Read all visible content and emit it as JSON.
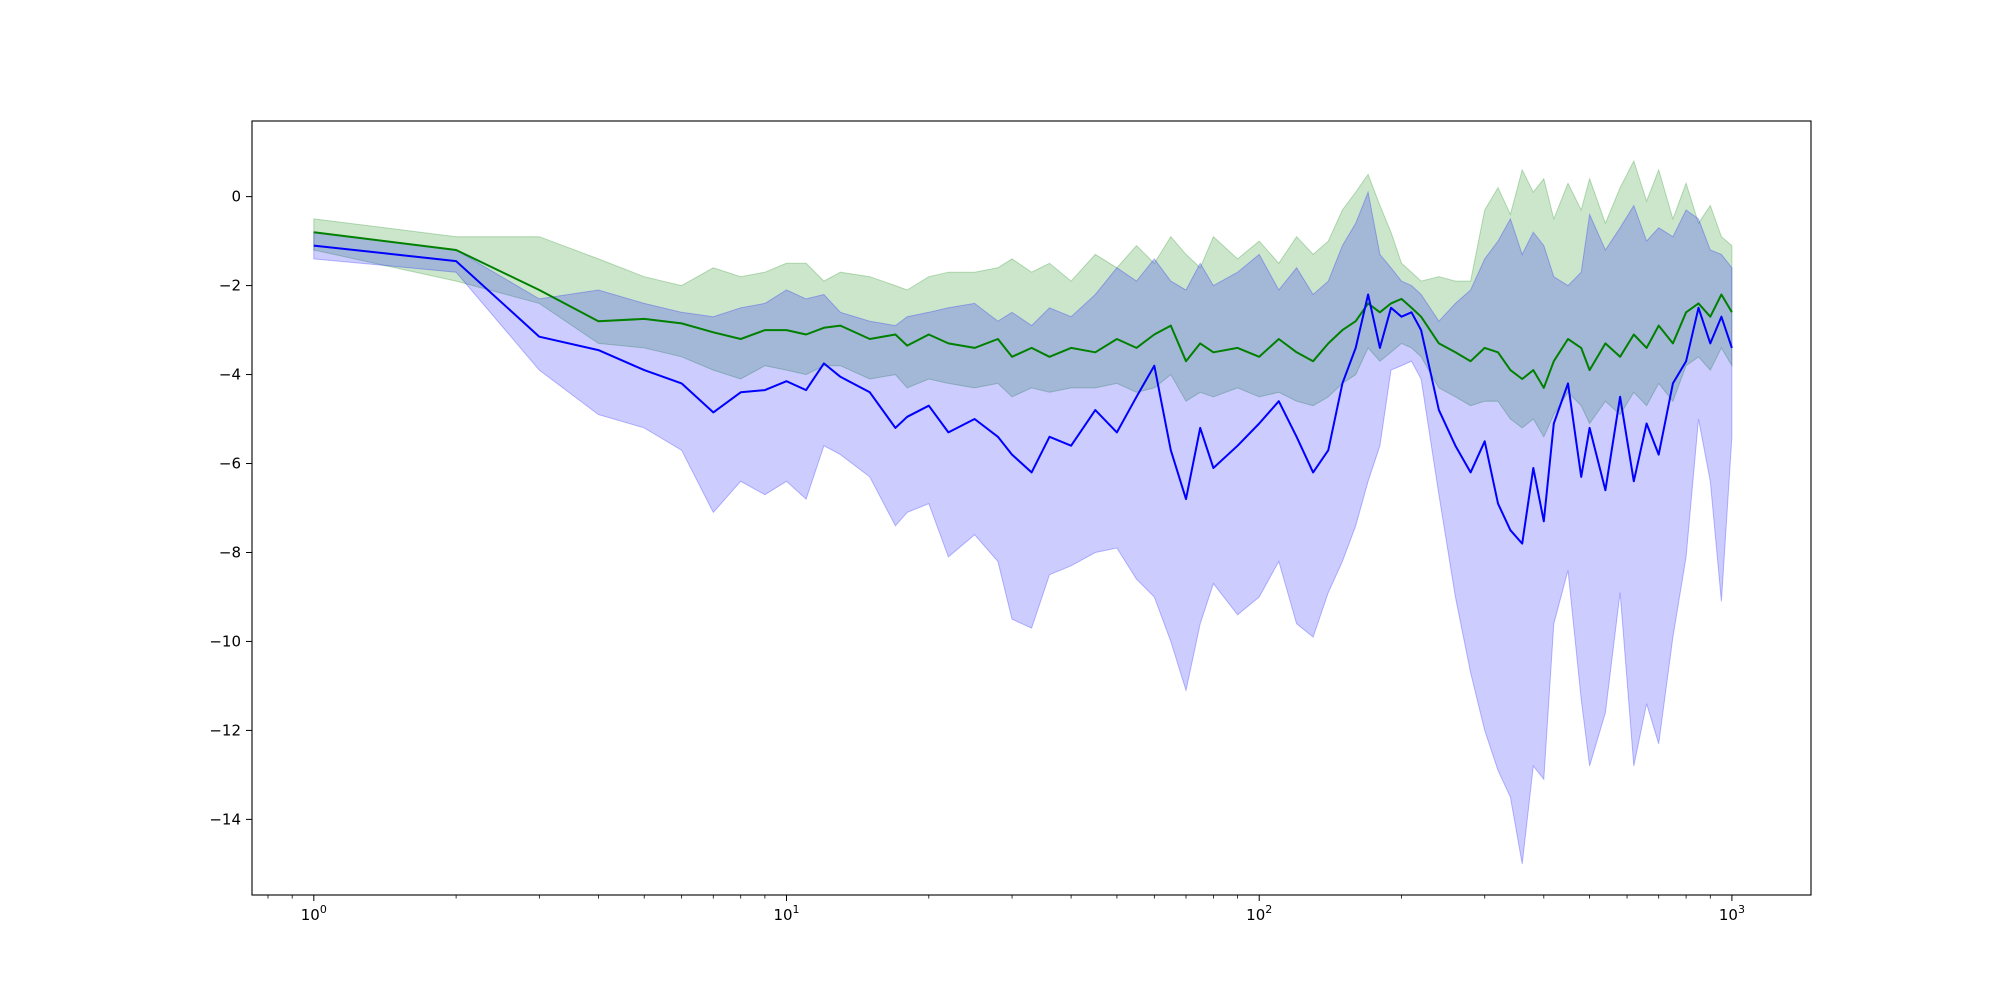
{
  "chart_data": {
    "type": "line",
    "title": "",
    "xlabel": "",
    "ylabel": "",
    "x_scale": "log",
    "xlim": [
      0.74,
      1470
    ],
    "ylim": [
      -15.7,
      1.7
    ],
    "x_ticks": [
      {
        "value": 1,
        "base": "10",
        "exp": "0"
      },
      {
        "value": 10,
        "base": "10",
        "exp": "1"
      },
      {
        "value": 100,
        "base": "10",
        "exp": "2"
      },
      {
        "value": 1000,
        "base": "10",
        "exp": "3"
      }
    ],
    "y_ticks": [
      {
        "value": 0,
        "label": "0"
      },
      {
        "value": -2,
        "label": "−2"
      },
      {
        "value": -4,
        "label": "−4"
      },
      {
        "value": -6,
        "label": "−6"
      },
      {
        "value": -8,
        "label": "−8"
      },
      {
        "value": -10,
        "label": "−10"
      },
      {
        "value": -12,
        "label": "−12"
      },
      {
        "value": -14,
        "label": "−14"
      }
    ],
    "grid": false,
    "legend": "none",
    "series": [
      {
        "color": "#008000",
        "band_color": "#008000",
        "band_opacity": 0.2,
        "points": [
          [
            1,
            -0.8,
            -1.2,
            -0.5
          ],
          [
            2,
            -1.2,
            -1.9,
            -0.9
          ],
          [
            3,
            -2.1,
            -2.4,
            -0.9
          ],
          [
            4,
            -2.8,
            -3.3,
            -1.4
          ],
          [
            5,
            -2.75,
            -3.4,
            -1.8
          ],
          [
            6,
            -2.85,
            -3.6,
            -2.0
          ],
          [
            7,
            -3.05,
            -3.9,
            -1.6
          ],
          [
            8,
            -3.2,
            -4.1,
            -1.8
          ],
          [
            9,
            -3.0,
            -3.8,
            -1.7
          ],
          [
            10,
            -3.0,
            -3.9,
            -1.5
          ],
          [
            11,
            -3.1,
            -4.0,
            -1.5
          ],
          [
            12,
            -2.95,
            -3.8,
            -1.9
          ],
          [
            13,
            -2.9,
            -3.8,
            -1.7
          ],
          [
            15,
            -3.2,
            -4.1,
            -1.8
          ],
          [
            17,
            -3.1,
            -4.0,
            -2.0
          ],
          [
            18,
            -3.35,
            -4.3,
            -2.1
          ],
          [
            20,
            -3.1,
            -4.1,
            -1.8
          ],
          [
            22,
            -3.3,
            -4.2,
            -1.7
          ],
          [
            25,
            -3.4,
            -4.3,
            -1.7
          ],
          [
            28,
            -3.2,
            -4.2,
            -1.6
          ],
          [
            30,
            -3.6,
            -4.5,
            -1.4
          ],
          [
            33,
            -3.4,
            -4.3,
            -1.7
          ],
          [
            36,
            -3.6,
            -4.4,
            -1.5
          ],
          [
            40,
            -3.4,
            -4.3,
            -1.9
          ],
          [
            45,
            -3.5,
            -4.3,
            -1.3
          ],
          [
            50,
            -3.2,
            -4.2,
            -1.6
          ],
          [
            55,
            -3.4,
            -4.4,
            -1.1
          ],
          [
            60,
            -3.1,
            -4.3,
            -1.5
          ],
          [
            65,
            -2.9,
            -4.0,
            -0.9
          ],
          [
            70,
            -3.7,
            -4.6,
            -1.3
          ],
          [
            75,
            -3.3,
            -4.4,
            -1.6
          ],
          [
            80,
            -3.5,
            -4.5,
            -0.9
          ],
          [
            90,
            -3.4,
            -4.3,
            -1.4
          ],
          [
            100,
            -3.6,
            -4.5,
            -1.0
          ],
          [
            110,
            -3.2,
            -4.4,
            -1.5
          ],
          [
            120,
            -3.5,
            -4.6,
            -0.9
          ],
          [
            130,
            -3.7,
            -4.7,
            -1.3
          ],
          [
            140,
            -3.3,
            -4.5,
            -1.0
          ],
          [
            150,
            -3.0,
            -4.2,
            -0.3
          ],
          [
            160,
            -2.8,
            -4.0,
            0.1
          ],
          [
            170,
            -2.4,
            -3.4,
            0.5
          ],
          [
            180,
            -2.6,
            -3.7,
            -0.2
          ],
          [
            190,
            -2.4,
            -3.5,
            -0.8
          ],
          [
            200,
            -2.3,
            -3.3,
            -1.5
          ],
          [
            210,
            -2.5,
            -3.4,
            -1.7
          ],
          [
            220,
            -2.7,
            -3.6,
            -1.9
          ],
          [
            240,
            -3.3,
            -4.3,
            -1.8
          ],
          [
            260,
            -3.5,
            -4.5,
            -1.9
          ],
          [
            280,
            -3.7,
            -4.7,
            -1.9
          ],
          [
            300,
            -3.4,
            -4.6,
            -0.3
          ],
          [
            320,
            -3.5,
            -4.6,
            0.2
          ],
          [
            340,
            -3.9,
            -5.0,
            -0.4
          ],
          [
            360,
            -4.1,
            -5.2,
            0.6
          ],
          [
            380,
            -3.9,
            -5.0,
            0.1
          ],
          [
            400,
            -4.3,
            -5.4,
            0.4
          ],
          [
            420,
            -3.7,
            -4.9,
            -0.5
          ],
          [
            450,
            -3.2,
            -4.4,
            0.3
          ],
          [
            480,
            -3.4,
            -4.7,
            -0.3
          ],
          [
            500,
            -3.9,
            -5.1,
            0.4
          ],
          [
            540,
            -3.3,
            -4.6,
            -0.6
          ],
          [
            580,
            -3.6,
            -4.9,
            0.2
          ],
          [
            620,
            -3.1,
            -4.4,
            0.8
          ],
          [
            660,
            -3.4,
            -4.7,
            -0.1
          ],
          [
            700,
            -2.9,
            -4.2,
            0.6
          ],
          [
            750,
            -3.3,
            -4.6,
            -0.5
          ],
          [
            800,
            -2.6,
            -3.8,
            0.3
          ],
          [
            850,
            -2.4,
            -3.6,
            -0.6
          ],
          [
            900,
            -2.7,
            -3.9,
            -0.2
          ],
          [
            950,
            -2.2,
            -3.4,
            -0.9
          ],
          [
            1000,
            -2.6,
            -3.8,
            -1.1
          ]
        ]
      },
      {
        "color": "#0000ff",
        "band_color": "#0000ff",
        "band_opacity": 0.2,
        "points": [
          [
            1,
            -1.1,
            -1.4,
            -0.8
          ],
          [
            2,
            -1.45,
            -1.7,
            -1.2
          ],
          [
            3,
            -3.15,
            -3.9,
            -2.3
          ],
          [
            4,
            -3.45,
            -4.9,
            -2.1
          ],
          [
            5,
            -3.9,
            -5.2,
            -2.4
          ],
          [
            6,
            -4.2,
            -5.7,
            -2.6
          ],
          [
            7,
            -4.85,
            -7.1,
            -2.7
          ],
          [
            8,
            -4.4,
            -6.4,
            -2.5
          ],
          [
            9,
            -4.35,
            -6.7,
            -2.4
          ],
          [
            10,
            -4.15,
            -6.4,
            -2.1
          ],
          [
            11,
            -4.35,
            -6.8,
            -2.3
          ],
          [
            12,
            -3.75,
            -5.6,
            -2.2
          ],
          [
            13,
            -4.05,
            -5.8,
            -2.6
          ],
          [
            15,
            -4.4,
            -6.3,
            -2.8
          ],
          [
            17,
            -5.2,
            -7.4,
            -2.9
          ],
          [
            18,
            -4.95,
            -7.1,
            -2.7
          ],
          [
            20,
            -4.7,
            -6.9,
            -2.6
          ],
          [
            22,
            -5.3,
            -8.1,
            -2.5
          ],
          [
            25,
            -5.0,
            -7.6,
            -2.4
          ],
          [
            28,
            -5.4,
            -8.2,
            -2.8
          ],
          [
            30,
            -5.8,
            -9.5,
            -2.6
          ],
          [
            33,
            -6.2,
            -9.7,
            -2.9
          ],
          [
            36,
            -5.4,
            -8.5,
            -2.5
          ],
          [
            40,
            -5.6,
            -8.3,
            -2.7
          ],
          [
            45,
            -4.8,
            -8.0,
            -2.2
          ],
          [
            50,
            -5.3,
            -7.9,
            -1.6
          ],
          [
            55,
            -4.5,
            -8.6,
            -1.9
          ],
          [
            60,
            -3.8,
            -9.0,
            -1.4
          ],
          [
            65,
            -5.7,
            -10.0,
            -1.9
          ],
          [
            70,
            -6.8,
            -11.1,
            -2.1
          ],
          [
            75,
            -5.2,
            -9.6,
            -1.5
          ],
          [
            80,
            -6.1,
            -8.7,
            -2.0
          ],
          [
            90,
            -5.6,
            -9.4,
            -1.7
          ],
          [
            100,
            -5.1,
            -9.0,
            -1.3
          ],
          [
            110,
            -4.6,
            -8.2,
            -2.1
          ],
          [
            120,
            -5.4,
            -9.6,
            -1.6
          ],
          [
            130,
            -6.2,
            -9.9,
            -2.2
          ],
          [
            140,
            -5.7,
            -8.9,
            -1.9
          ],
          [
            150,
            -4.2,
            -8.2,
            -1.1
          ],
          [
            160,
            -3.4,
            -7.4,
            -0.6
          ],
          [
            170,
            -2.2,
            -6.4,
            0.1
          ],
          [
            180,
            -3.4,
            -5.6,
            -1.3
          ],
          [
            190,
            -2.5,
            -3.9,
            -1.6
          ],
          [
            200,
            -2.7,
            -3.8,
            -1.9
          ],
          [
            210,
            -2.6,
            -3.7,
            -2.0
          ],
          [
            220,
            -3.0,
            -4.1,
            -2.2
          ],
          [
            240,
            -4.8,
            -6.7,
            -2.8
          ],
          [
            260,
            -5.6,
            -9.0,
            -2.4
          ],
          [
            280,
            -6.2,
            -10.7,
            -2.1
          ],
          [
            300,
            -5.5,
            -12.0,
            -1.4
          ],
          [
            320,
            -6.9,
            -12.9,
            -1.0
          ],
          [
            340,
            -7.5,
            -13.5,
            -0.5
          ],
          [
            360,
            -7.8,
            -15.0,
            -1.3
          ],
          [
            380,
            -6.1,
            -12.8,
            -0.8
          ],
          [
            400,
            -7.3,
            -13.1,
            -1.1
          ],
          [
            420,
            -5.1,
            -9.6,
            -1.8
          ],
          [
            450,
            -4.2,
            -8.4,
            -2.0
          ],
          [
            480,
            -6.3,
            -11.3,
            -1.7
          ],
          [
            500,
            -5.2,
            -12.8,
            -0.4
          ],
          [
            540,
            -6.6,
            -11.6,
            -1.2
          ],
          [
            580,
            -4.5,
            -8.9,
            -0.7
          ],
          [
            620,
            -6.4,
            -12.8,
            -0.2
          ],
          [
            660,
            -5.1,
            -11.4,
            -1.0
          ],
          [
            700,
            -5.8,
            -12.3,
            -0.7
          ],
          [
            750,
            -4.2,
            -9.9,
            -0.9
          ],
          [
            800,
            -3.7,
            -8.1,
            -0.3
          ],
          [
            850,
            -2.5,
            -5.0,
            -0.5
          ],
          [
            900,
            -3.3,
            -6.4,
            -1.2
          ],
          [
            950,
            -2.7,
            -9.1,
            -1.3
          ],
          [
            1000,
            -3.4,
            -5.4,
            -1.6
          ]
        ]
      }
    ]
  }
}
